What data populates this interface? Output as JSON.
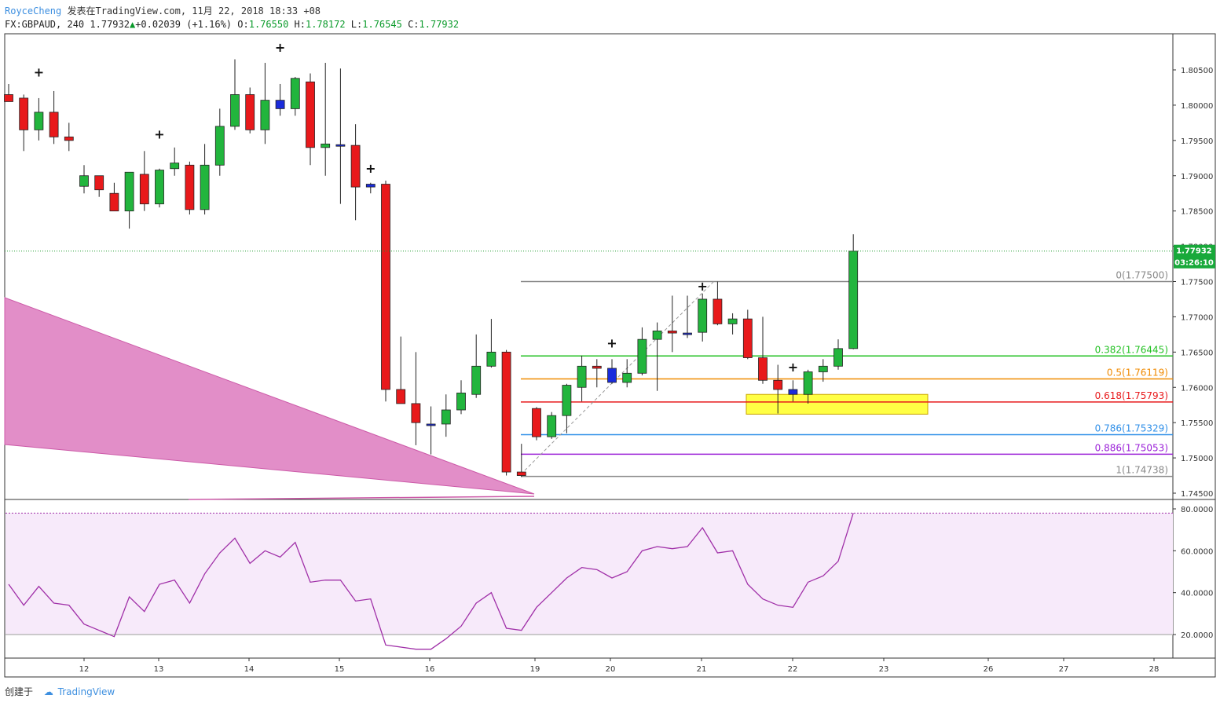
{
  "header": {
    "author": "RoyceCheng",
    "published": "发表在TradingView.com, 11月 22, 2018 18:33 +08",
    "symbol": "FX:GBPAUD, 240",
    "last": "1.77932",
    "change": "+0.02039 (+1.16%)",
    "o_label": "O:",
    "o": "1.76550",
    "h_label": "H:",
    "h": "1.78172",
    "l_label": "L:",
    "l": "1.76545",
    "c_label": "C:",
    "c": "1.77932"
  },
  "footer": {
    "created": "创建于",
    "brand": "TradingView"
  },
  "price_tag": {
    "price": "1.77932",
    "countdown": "03:26:10"
  },
  "colors": {
    "up": "#22b53d",
    "down": "#e8191b",
    "doji": "#1a2bdb",
    "wedge": "#e28ec8",
    "rsi": "#a030a8",
    "rsi_band": "#f7eafa"
  },
  "chart_data": [
    {
      "type": "candlestick",
      "title": "FX:GBPAUD, 240",
      "ylim": [
        1.743,
        1.809
      ],
      "y_ticks": [
        "1.80500",
        "1.80000",
        "1.79500",
        "1.79000",
        "1.78500",
        "1.78000",
        "1.77500",
        "1.77000",
        "1.76500",
        "1.76000",
        "1.75500",
        "1.75000",
        "1.74500"
      ],
      "x_ticks": [
        "12",
        "13",
        "14",
        "15",
        "16",
        "19",
        "20",
        "21",
        "22",
        "23",
        "26",
        "27",
        "28"
      ],
      "last_price_line": 1.77932,
      "candles": [
        {
          "o": 1.8015,
          "h": 1.803,
          "l": 1.8005,
          "c": 1.8005
        },
        {
          "o": 1.801,
          "h": 1.8015,
          "l": 1.7935,
          "c": 1.7965
        },
        {
          "o": 1.7965,
          "h": 1.801,
          "l": 1.795,
          "c": 1.799
        },
        {
          "o": 1.799,
          "h": 1.802,
          "l": 1.7945,
          "c": 1.7955
        },
        {
          "o": 1.7955,
          "h": 1.7975,
          "l": 1.7935,
          "c": 1.795
        },
        {
          "o": 1.7885,
          "h": 1.7915,
          "l": 1.7875,
          "c": 1.79
        },
        {
          "o": 1.79,
          "h": 1.79,
          "l": 1.787,
          "c": 1.788
        },
        {
          "o": 1.7875,
          "h": 1.789,
          "l": 1.785,
          "c": 1.785
        },
        {
          "o": 1.785,
          "h": 1.7905,
          "l": 1.7825,
          "c": 1.7905
        },
        {
          "o": 1.7902,
          "h": 1.7935,
          "l": 1.785,
          "c": 1.786
        },
        {
          "o": 1.786,
          "h": 1.791,
          "l": 1.7855,
          "c": 1.7908
        },
        {
          "o": 1.791,
          "h": 1.794,
          "l": 1.79,
          "c": 1.7918
        },
        {
          "o": 1.7915,
          "h": 1.792,
          "l": 1.7845,
          "c": 1.7852
        },
        {
          "o": 1.7852,
          "h": 1.7945,
          "l": 1.7845,
          "c": 1.7915
        },
        {
          "o": 1.7915,
          "h": 1.7995,
          "l": 1.79,
          "c": 1.797
        },
        {
          "o": 1.797,
          "h": 1.8065,
          "l": 1.7965,
          "c": 1.8015
        },
        {
          "o": 1.8015,
          "h": 1.8025,
          "l": 1.796,
          "c": 1.7965
        },
        {
          "o": 1.7965,
          "h": 1.806,
          "l": 1.7945,
          "c": 1.8007
        },
        {
          "o": 1.7995,
          "h": 1.803,
          "l": 1.7985,
          "c": 1.8007
        },
        {
          "o": 1.7995,
          "h": 1.804,
          "l": 1.7985,
          "c": 1.8038
        },
        {
          "o": 1.8033,
          "h": 1.8045,
          "l": 1.7915,
          "c": 1.794
        },
        {
          "o": 1.794,
          "h": 1.806,
          "l": 1.79,
          "c": 1.7945
        },
        {
          "o": 1.7944,
          "h": 1.8052,
          "l": 1.786,
          "c": 1.7943
        },
        {
          "o": 1.7943,
          "h": 1.7973,
          "l": 1.7837,
          "c": 1.7884
        },
        {
          "o": 1.7884,
          "h": 1.789,
          "l": 1.7875,
          "c": 1.7888
        },
        {
          "o": 1.7888,
          "h": 1.7893,
          "l": 1.758,
          "c": 1.7597
        },
        {
          "o": 1.7597,
          "h": 1.7672,
          "l": 1.758,
          "c": 1.7577
        },
        {
          "o": 1.7577,
          "h": 1.765,
          "l": 1.7518,
          "c": 1.755
        },
        {
          "o": 1.7548,
          "h": 1.7573,
          "l": 1.7505,
          "c": 1.7548
        },
        {
          "o": 1.7548,
          "h": 1.759,
          "l": 1.753,
          "c": 1.7568
        },
        {
          "o": 1.7568,
          "h": 1.761,
          "l": 1.7562,
          "c": 1.7592
        },
        {
          "o": 1.759,
          "h": 1.7675,
          "l": 1.7585,
          "c": 1.763
        },
        {
          "o": 1.763,
          "h": 1.7697,
          "l": 1.7628,
          "c": 1.765
        },
        {
          "o": 1.765,
          "h": 1.7653,
          "l": 1.7475,
          "c": 1.748
        },
        {
          "o": 1.748,
          "h": 1.752,
          "l": 1.7473,
          "c": 1.7475
        },
        {
          "o": 1.757,
          "h": 1.7572,
          "l": 1.7525,
          "c": 1.753
        },
        {
          "o": 1.753,
          "h": 1.7565,
          "l": 1.7527,
          "c": 1.756
        },
        {
          "o": 1.756,
          "h": 1.7605,
          "l": 1.7535,
          "c": 1.7603
        },
        {
          "o": 1.76,
          "h": 1.7645,
          "l": 1.758,
          "c": 1.763
        },
        {
          "o": 1.763,
          "h": 1.764,
          "l": 1.76,
          "c": 1.7627
        },
        {
          "o": 1.7627,
          "h": 1.764,
          "l": 1.7605,
          "c": 1.7607
        },
        {
          "o": 1.7607,
          "h": 1.764,
          "l": 1.76,
          "c": 1.762
        },
        {
          "o": 1.762,
          "h": 1.7685,
          "l": 1.7617,
          "c": 1.7668
        },
        {
          "o": 1.7668,
          "h": 1.7692,
          "l": 1.7595,
          "c": 1.768
        },
        {
          "o": 1.768,
          "h": 1.773,
          "l": 1.765,
          "c": 1.7677
        },
        {
          "o": 1.7677,
          "h": 1.773,
          "l": 1.767,
          "c": 1.7675
        },
        {
          "o": 1.7678,
          "h": 1.7733,
          "l": 1.7665,
          "c": 1.7725
        },
        {
          "o": 1.7725,
          "h": 1.775,
          "l": 1.7688,
          "c": 1.769
        },
        {
          "o": 1.769,
          "h": 1.7705,
          "l": 1.7675,
          "c": 1.7697
        },
        {
          "o": 1.7697,
          "h": 1.771,
          "l": 1.764,
          "c": 1.7642
        },
        {
          "o": 1.7642,
          "h": 1.77,
          "l": 1.7605,
          "c": 1.761
        },
        {
          "o": 1.761,
          "h": 1.7632,
          "l": 1.7563,
          "c": 1.7597
        },
        {
          "o": 1.7597,
          "h": 1.761,
          "l": 1.758,
          "c": 1.759
        },
        {
          "o": 1.759,
          "h": 1.7625,
          "l": 1.7577,
          "c": 1.7622
        },
        {
          "o": 1.7622,
          "h": 1.764,
          "l": 1.7608,
          "c": 1.763
        },
        {
          "o": 1.763,
          "h": 1.7668,
          "l": 1.7625,
          "c": 1.7655
        },
        {
          "o": 1.7655,
          "h": 1.7817,
          "l": 1.7654,
          "c": 1.7793
        }
      ],
      "markers": [
        {
          "candle": 2,
          "price": 1.8046
        },
        {
          "candle": 10,
          "price": 1.7958
        },
        {
          "candle": 18,
          "price": 1.8081
        },
        {
          "candle": 24,
          "price": 1.791
        },
        {
          "candle": 40,
          "price": 1.7662
        },
        {
          "candle": 46,
          "price": 1.7743
        },
        {
          "candle": 52,
          "price": 1.7628
        }
      ],
      "fib": {
        "levels": [
          {
            "ratio": "0",
            "price": 1.775,
            "label": "0(1.77500)",
            "color": "#888888"
          },
          {
            "ratio": "0.382",
            "price": 1.76445,
            "label": "0.382(1.76445)",
            "color": "#22c122"
          },
          {
            "ratio": "0.5",
            "price": 1.76119,
            "label": "0.5(1.76119)",
            "color": "#f08a00"
          },
          {
            "ratio": "0.618",
            "price": 1.75793,
            "label": "0.618(1.75793)",
            "color": "#e8191b"
          },
          {
            "ratio": "0.786",
            "price": 1.75329,
            "label": "0.786(1.75329)",
            "color": "#2f8fe8"
          },
          {
            "ratio": "0.886",
            "price": 1.75053,
            "label": "0.886(1.75053)",
            "color": "#9b22d8"
          },
          {
            "ratio": "1",
            "price": 1.74738,
            "label": "1(1.74738)",
            "color": "#888888"
          }
        ]
      },
      "zone": {
        "top": 1.759,
        "bottom": 1.7562,
        "color": "#ffff44"
      }
    },
    {
      "type": "line",
      "ylim": [
        12,
        80
      ],
      "y_ticks": [
        "80.0000",
        "60.0000",
        "40.0000",
        "20.0000"
      ],
      "bands": [
        20,
        78
      ],
      "values": [
        44,
        34,
        43,
        35,
        34,
        25,
        22,
        19,
        38,
        31,
        44,
        46,
        35,
        49,
        59,
        66,
        54,
        60,
        57,
        64,
        45,
        46,
        46,
        36,
        37,
        15,
        14,
        13,
        13,
        18,
        24,
        35,
        40,
        23,
        22,
        33,
        40,
        47,
        52,
        51,
        47,
        50,
        60,
        62,
        61,
        62,
        71,
        59,
        60,
        44,
        37,
        34,
        33,
        45,
        48,
        55,
        78
      ]
    }
  ]
}
